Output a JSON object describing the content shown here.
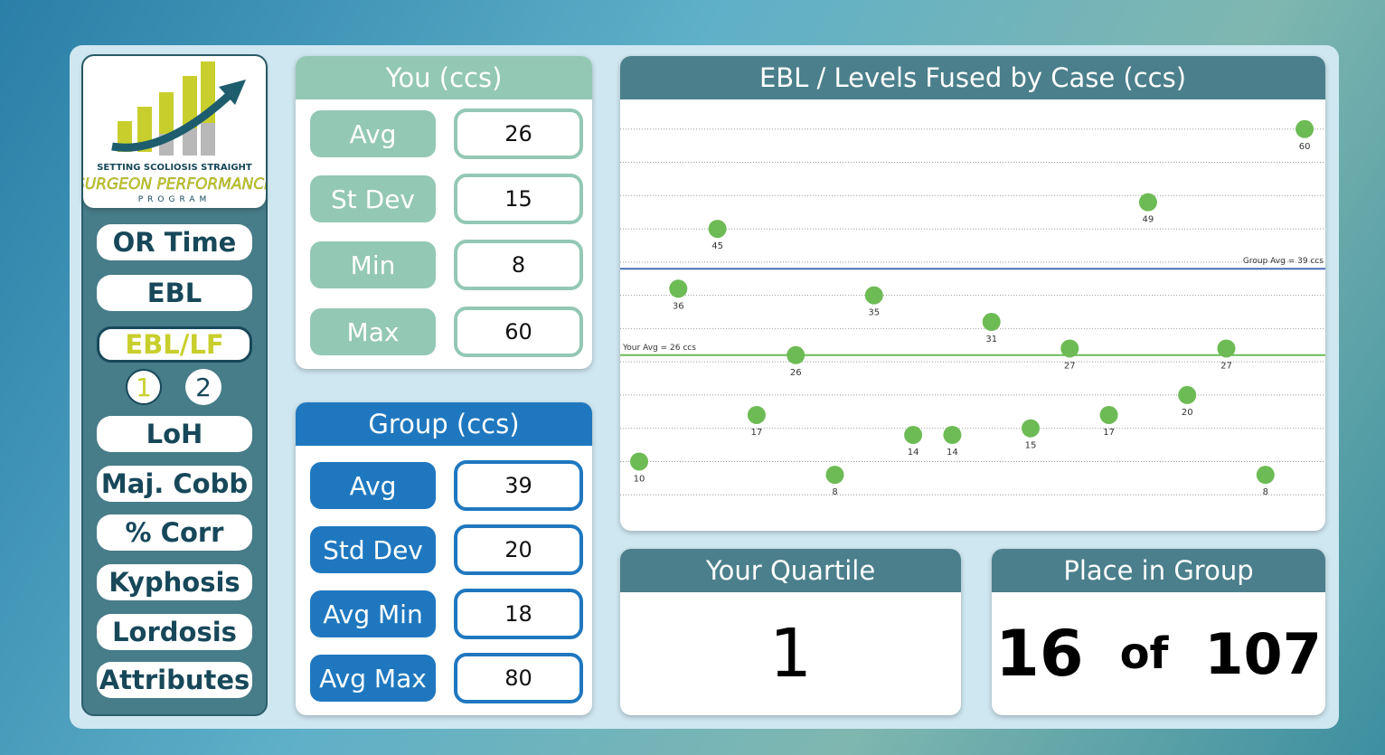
{
  "logo": {
    "line1": "SETTING SCOLIOSIS STRAIGHT",
    "line2": "SURGEON PERFORMANCE",
    "line3": "PROGRAM"
  },
  "nav": {
    "items": [
      "OR Time",
      "EBL",
      "EBL/LF",
      "LoH",
      "Maj. Cobb",
      "% Corr",
      "Kyphosis",
      "Lordosis",
      "Attributes"
    ],
    "active": 2,
    "sub": [
      "1",
      "2"
    ],
    "sub_active": 0
  },
  "you": {
    "title": "You (ccs)",
    "rows": [
      [
        "Avg",
        26
      ],
      [
        "St Dev",
        15
      ],
      [
        "Min",
        8
      ],
      [
        "Max",
        60
      ]
    ]
  },
  "group": {
    "title": "Group (ccs)",
    "rows": [
      [
        "Avg",
        39
      ],
      [
        "Std Dev",
        20
      ],
      [
        "Avg Min",
        18
      ],
      [
        "Avg Max",
        80
      ]
    ]
  },
  "quartile": {
    "title": "Your Quartile",
    "value": 1
  },
  "place": {
    "title": "Place in Group",
    "rank": 16,
    "of": "of",
    "total": 107
  },
  "chart_data": {
    "type": "scatter",
    "title": "EBL / Levels Fused by Case (ccs)",
    "categories": [
      null,
      null,
      null,
      null,
      null,
      null,
      null,
      null,
      null,
      null,
      null,
      null,
      null,
      null,
      null,
      null,
      null,
      null
    ],
    "values": [
      10,
      36,
      45,
      17,
      26,
      8,
      35,
      14,
      14,
      31,
      15,
      27,
      17,
      49,
      20,
      27,
      8,
      60
    ],
    "color": "#6dbb55",
    "ylim": [
      0,
      65
    ],
    "yticks": [
      5,
      10,
      15,
      20,
      25,
      30,
      35,
      40,
      45,
      50,
      55,
      60
    ],
    "grid": true,
    "reference_lines": [
      {
        "label": "Group Avg = 39 ccs",
        "value": 39,
        "color": "#4a6fb5"
      },
      {
        "label": "Your Avg = 26 ccs",
        "value": 26,
        "color": "#6dbb55"
      }
    ]
  }
}
